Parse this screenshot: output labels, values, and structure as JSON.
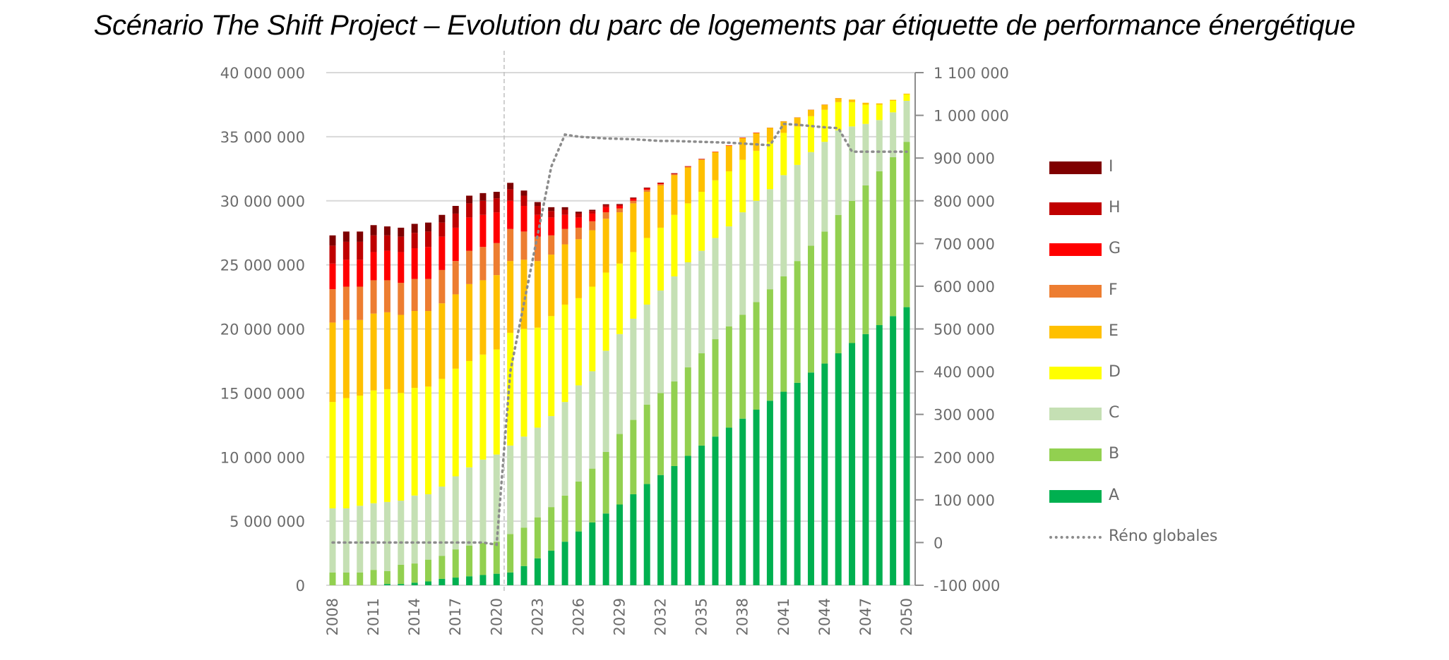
{
  "chart_data": {
    "type": "bar",
    "stacked": true,
    "title": "Scénario The Shift Project – Evolution du parc de logements par étiquette de performance énergétique",
    "xlabel": "",
    "ylabel": "",
    "y2label": "",
    "ylim": [
      0,
      40000000
    ],
    "y2lim": [
      -100000,
      1100000
    ],
    "yticks": [
      "0",
      "5 000 000",
      "10 000 000",
      "15 000 000",
      "20 000 000",
      "25 000 000",
      "30 000 000",
      "35 000 000",
      "40 000 000"
    ],
    "yticks_values": [
      0,
      5000000,
      10000000,
      15000000,
      20000000,
      25000000,
      30000000,
      35000000,
      40000000
    ],
    "y2ticks": [
      "-100 000",
      "0",
      "100 000",
      "200 000",
      "300 000",
      "400 000",
      "500 000",
      "600 000",
      "700 000",
      "800 000",
      "900 000",
      "1 000 000",
      "1 100 000"
    ],
    "y2ticks_values": [
      -100000,
      0,
      100000,
      200000,
      300000,
      400000,
      500000,
      600000,
      700000,
      800000,
      900000,
      1000000,
      1100000
    ],
    "grid": true,
    "vertical_marker_year": 2020,
    "legend_position": "right",
    "categories": [
      2008,
      2009,
      2010,
      2011,
      2012,
      2013,
      2014,
      2015,
      2016,
      2017,
      2018,
      2019,
      2020,
      2021,
      2022,
      2023,
      2024,
      2025,
      2026,
      2027,
      2028,
      2029,
      2030,
      2031,
      2032,
      2033,
      2034,
      2035,
      2036,
      2037,
      2038,
      2039,
      2040,
      2041,
      2042,
      2043,
      2044,
      2045,
      2046,
      2047,
      2048,
      2049,
      2050
    ],
    "xtick_labels": [
      "2008",
      "2011",
      "2014",
      "2017",
      "2020",
      "2023",
      "2026",
      "2029",
      "2032",
      "2035",
      "2038",
      "2041",
      "2044",
      "2047",
      "2050"
    ],
    "series": [
      {
        "name": "A",
        "color": "#00b050",
        "values": [
          0,
          0,
          0,
          0,
          100000,
          100000,
          200000,
          300000,
          500000,
          600000,
          700000,
          800000,
          900000,
          1000000,
          1500000,
          2100000,
          2700000,
          3400000,
          4200000,
          4900000,
          5600000,
          6300000,
          7100000,
          7900000,
          8600000,
          9300000,
          10100000,
          10900000,
          11600000,
          12300000,
          13000000,
          13700000,
          14400000,
          15100000,
          15800000,
          16600000,
          17300000,
          18100000,
          18900000,
          19600000,
          20300000,
          21000000,
          21700000
        ]
      },
      {
        "name": "B",
        "color": "#92d050",
        "values": [
          1000000,
          1000000,
          1000000,
          1200000,
          1000000,
          1500000,
          1500000,
          1700000,
          1800000,
          2200000,
          2400000,
          2500000,
          2500000,
          3000000,
          3000000,
          3200000,
          3400000,
          3600000,
          3900000,
          4200000,
          4800000,
          5500000,
          5800000,
          6200000,
          6400000,
          6600000,
          6900000,
          7200000,
          7600000,
          7900000,
          8100000,
          8400000,
          8700000,
          9000000,
          9500000,
          9900000,
          10300000,
          10800000,
          11100000,
          11600000,
          12000000,
          12400000,
          12900000
        ]
      },
      {
        "name": "C",
        "color": "#c5e0b4",
        "values": [
          5000000,
          5000000,
          5200000,
          5200000,
          5400000,
          5000000,
          5300000,
          5100000,
          5400000,
          5700000,
          6100000,
          6500000,
          6800000,
          6900000,
          7100000,
          7000000,
          7100000,
          7300000,
          7500000,
          7600000,
          7900000,
          7800000,
          7900000,
          7800000,
          8000000,
          8200000,
          8200000,
          8000000,
          7900000,
          7800000,
          8000000,
          7900000,
          7800000,
          7900000,
          7500000,
          7300000,
          7000000,
          6600000,
          5800000,
          4800000,
          4000000,
          3500000,
          3200000
        ]
      },
      {
        "name": "D",
        "color": "#ffff00",
        "values": [
          8300000,
          8600000,
          8600000,
          8800000,
          8800000,
          8400000,
          8400000,
          8400000,
          8400000,
          8400000,
          8300000,
          8200000,
          8200000,
          8800000,
          8400000,
          7800000,
          7800000,
          7600000,
          6800000,
          6600000,
          6100000,
          5500000,
          5200000,
          5200000,
          4900000,
          4800000,
          4600000,
          4600000,
          4500000,
          4300000,
          4100000,
          3900000,
          3700000,
          3300000,
          3000000,
          2800000,
          2500000,
          2200000,
          1900000,
          1500000,
          1200000,
          900000,
          500000
        ]
      },
      {
        "name": "E",
        "color": "#ffc000",
        "values": [
          6200000,
          6100000,
          5900000,
          6000000,
          6000000,
          6100000,
          6000000,
          5900000,
          5900000,
          5800000,
          6000000,
          5800000,
          5800000,
          5600000,
          5400000,
          5200000,
          4800000,
          4700000,
          4600000,
          4400000,
          4200000,
          4000000,
          3800000,
          3600000,
          3300000,
          3100000,
          2800000,
          2500000,
          2200000,
          2000000,
          1700000,
          1400000,
          1100000,
          900000,
          700000,
          500000,
          400000,
          300000,
          200000,
          150000,
          100000,
          80000,
          60000
        ]
      },
      {
        "name": "F",
        "color": "#ed7d31",
        "values": [
          2600000,
          2600000,
          2600000,
          2600000,
          2500000,
          2500000,
          2500000,
          2500000,
          2600000,
          2600000,
          2600000,
          2600000,
          2500000,
          2500000,
          2200000,
          1900000,
          1500000,
          1200000,
          900000,
          700000,
          500000,
          300000,
          200000,
          150000,
          100000,
          80000,
          60000,
          40000,
          30000,
          20000,
          20000,
          10000,
          10000,
          10000,
          10000,
          10000,
          10000,
          10000,
          0,
          0,
          0,
          0,
          0
        ]
      },
      {
        "name": "G",
        "color": "#ff0000",
        "values": [
          2000000,
          2100000,
          2100000,
          2200000,
          2300000,
          2400000,
          2400000,
          2500000,
          2600000,
          2600000,
          2600000,
          2500000,
          2400000,
          2200000,
          2000000,
          1700000,
          1400000,
          1100000,
          800000,
          600000,
          400000,
          200000,
          150000,
          100000,
          60000,
          40000,
          30000,
          20000,
          10000,
          10000,
          10000,
          10000,
          0,
          0,
          0,
          0,
          0,
          0,
          0,
          0,
          0,
          0,
          0
        ]
      },
      {
        "name": "H",
        "color": "#c00000",
        "values": [
          1400000,
          1400000,
          1400000,
          1300000,
          1200000,
          1200000,
          1200000,
          1200000,
          1100000,
          1100000,
          1100000,
          1100000,
          1100000,
          900000,
          800000,
          700000,
          500000,
          400000,
          300000,
          200000,
          150000,
          100000,
          80000,
          60000,
          40000,
          20000,
          10000,
          10000,
          0,
          0,
          0,
          0,
          0,
          0,
          0,
          0,
          0,
          0,
          0,
          0,
          0,
          0,
          0
        ]
      },
      {
        "name": "I",
        "color": "#7f0000",
        "values": [
          800000,
          800000,
          800000,
          800000,
          700000,
          700000,
          700000,
          700000,
          600000,
          600000,
          600000,
          600000,
          500000,
          500000,
          400000,
          300000,
          300000,
          200000,
          150000,
          100000,
          80000,
          50000,
          30000,
          20000,
          10000,
          10000,
          0,
          0,
          0,
          0,
          0,
          0,
          0,
          0,
          0,
          0,
          0,
          0,
          0,
          0,
          0,
          0,
          0
        ]
      }
    ],
    "line_series": {
      "name": "Réno globales",
      "axis": "right",
      "style": "dotted",
      "color": "#8c8c8c",
      "values": [
        0,
        0,
        0,
        0,
        0,
        0,
        0,
        0,
        0,
        0,
        0,
        0,
        -5000,
        400000,
        560000,
        720000,
        880000,
        955000,
        950000,
        948000,
        946000,
        945000,
        944000,
        942000,
        940000,
        940000,
        939000,
        938000,
        937000,
        936000,
        934000,
        932000,
        930000,
        980000,
        978000,
        975000,
        972000,
        970000,
        915000,
        915000,
        915000,
        915000,
        915000
      ]
    },
    "legend": [
      "I",
      "H",
      "G",
      "F",
      "E",
      "D",
      "C",
      "B",
      "A",
      "Réno globales"
    ]
  }
}
